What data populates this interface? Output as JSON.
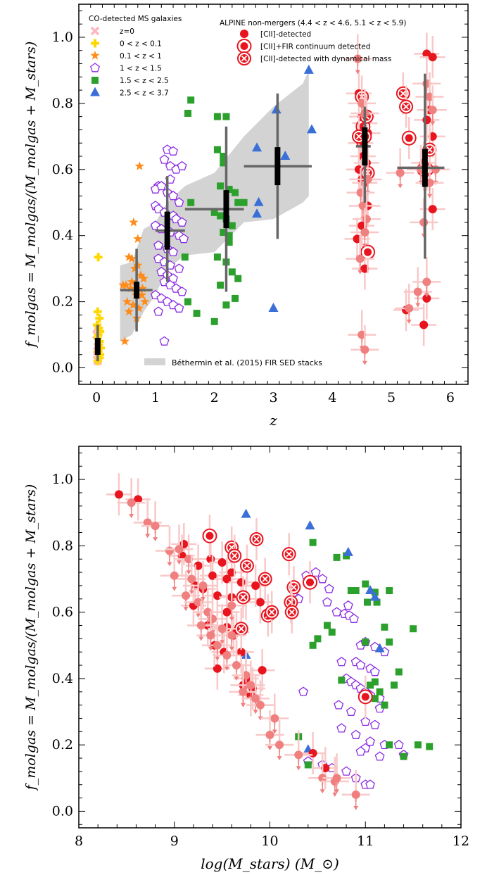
{
  "colors": {
    "z0": "#ffb6c1",
    "zlt01": "#ffd700",
    "z01_1": "#ff8c1a",
    "z1_15": "#8b2be2",
    "z15_25": "#2ca02c",
    "z25_37": "#3a6fd8",
    "alpine": "#e8141e",
    "alpine_ul": "#f08080",
    "errbar": "#f9c8c8",
    "band": "#d3d3d3",
    "binned_err": "#666666",
    "binned_mean": "#000000"
  },
  "legend": {
    "co_title": "CO-detected MS galaxies",
    "co_items": [
      {
        "label": "z=0",
        "marker": "x",
        "color": "#ffb6c1"
      },
      {
        "label": "0 < z < 0.1",
        "marker": "plus",
        "color": "#ffd700"
      },
      {
        "label": "0.1 < z < 1",
        "marker": "star",
        "color": "#ff8c1a"
      },
      {
        "label": "1 < z < 1.5",
        "marker": "pentagon",
        "color": "#8b2be2"
      },
      {
        "label": "1.5 < z < 2.5",
        "marker": "square",
        "color": "#2ca02c"
      },
      {
        "label": "2.5 < z < 3.7",
        "marker": "triangle",
        "color": "#3a6fd8"
      }
    ],
    "alpine_title": "ALPINE non-mergers (4.4 < z < 4.6, 5.1 < z < 5.9)",
    "alpine_items": [
      {
        "label": "[CII]-detected",
        "marker": "circle"
      },
      {
        "label": "[CII]+FIR continuum detected",
        "marker": "ring"
      },
      {
        "label": "[CII]-detected with dynamical mass",
        "marker": "xcircle"
      }
    ],
    "band_label": "Béthermin et al. (2015) FIR SED stacks"
  },
  "chart_data": [
    {
      "type": "scatter",
      "xlabel": "z",
      "ylabel": "f_molgas = M_molgas/(M_molgas + M_stars)",
      "xlim": [
        -0.3,
        6.3
      ],
      "ylim": [
        -0.05,
        1.1
      ],
      "xticks": [
        "0",
        "1",
        "2",
        "3",
        "4",
        "5",
        "6"
      ],
      "yticks": [
        "0.0",
        "0.2",
        "0.4",
        "0.6",
        "0.8",
        "1.0"
      ],
      "band": {
        "x": [
          0.4,
          0.6,
          0.8,
          1.0,
          1.2,
          1.5,
          2.0,
          2.5,
          3.0,
          3.5,
          3.6
        ],
        "lower": [
          0.08,
          0.1,
          0.17,
          0.22,
          0.3,
          0.34,
          0.35,
          0.44,
          0.45,
          0.5,
          0.52
        ],
        "upper": [
          0.31,
          0.32,
          0.42,
          0.44,
          0.5,
          0.55,
          0.59,
          0.7,
          0.79,
          0.86,
          0.9
        ]
      },
      "binned": [
        {
          "x": 0.02,
          "y": 0.065,
          "xlo": 0.0,
          "xhi": 0.05,
          "ylo": 0.02,
          "yhi": 0.13
        },
        {
          "x": 0.68,
          "y": 0.235,
          "xlo": 0.4,
          "xhi": 0.95,
          "ylo": 0.11,
          "yhi": 0.36
        },
        {
          "x": 1.2,
          "y": 0.415,
          "xlo": 1.0,
          "xhi": 1.5,
          "ylo": 0.26,
          "yhi": 0.58
        },
        {
          "x": 2.2,
          "y": 0.48,
          "xlo": 1.5,
          "xhi": 2.5,
          "ylo": 0.23,
          "yhi": 0.73
        },
        {
          "x": 3.07,
          "y": 0.61,
          "xlo": 2.5,
          "xhi": 3.65,
          "ylo": 0.39,
          "yhi": 0.83
        },
        {
          "x": 4.55,
          "y": 0.67,
          "xlo": 4.4,
          "xhi": 4.65,
          "ylo": 0.5,
          "yhi": 0.79
        },
        {
          "x": 5.57,
          "y": 0.605,
          "xlo": 5.1,
          "xhi": 5.9,
          "ylo": 0.33,
          "yhi": 0.89
        }
      ],
      "series": [
        {
          "name": "z=0",
          "marker": "x",
          "x": [
            0.01,
            0.02,
            0.01,
            0.03,
            0.02,
            0.0,
            0.01
          ],
          "y": [
            0.04,
            0.08,
            0.12,
            0.06,
            0.02,
            0.1,
            0.05
          ]
        },
        {
          "name": "0 < z < 0.1",
          "marker": "plus",
          "x": [
            0.03,
            0.02,
            0.05,
            0.01,
            0.04,
            0.06,
            0.03,
            0.02,
            0.05,
            0.04,
            0.07,
            0.03,
            0.06,
            0.05,
            0.02
          ],
          "y": [
            0.335,
            0.17,
            0.15,
            0.13,
            0.12,
            0.11,
            0.1,
            0.09,
            0.08,
            0.07,
            0.06,
            0.05,
            0.04,
            0.03,
            0.02
          ]
        },
        {
          "name": "0.1 < z < 1",
          "marker": "star",
          "x": [
            0.73,
            0.63,
            0.7,
            0.55,
            0.6,
            0.65,
            0.75,
            0.8,
            0.5,
            0.45,
            0.58,
            0.67,
            0.77,
            0.52,
            0.62,
            0.72,
            0.55,
            0.68,
            0.48,
            0.82,
            0.6,
            0.7,
            0.78
          ],
          "y": [
            0.61,
            0.44,
            0.39,
            0.335,
            0.33,
            0.3,
            0.28,
            0.27,
            0.25,
            0.25,
            0.24,
            0.22,
            0.22,
            0.2,
            0.19,
            0.18,
            0.17,
            0.15,
            0.08,
            0.2,
            0.26,
            0.31,
            0.24
          ]
        },
        {
          "name": "1 < z < 1.5",
          "marker": "pentagon",
          "x": [
            1.2,
            1.3,
            1.15,
            1.25,
            1.35,
            1.45,
            1.05,
            1.0,
            1.1,
            1.2,
            1.3,
            1.4,
            1.0,
            1.05,
            1.15,
            1.3,
            1.35,
            1.45,
            1.0,
            1.1,
            1.25,
            1.4,
            1.48,
            1.05,
            1.2,
            1.3,
            1.05,
            1.15,
            1.25,
            1.4,
            1.1,
            1.2,
            1.3,
            1.15,
            1.25,
            1.35,
            1.45,
            1.0,
            1.1,
            1.2,
            1.3,
            1.4,
            1.05,
            1.15,
            1.25
          ],
          "y": [
            0.66,
            0.655,
            0.63,
            0.61,
            0.6,
            0.61,
            0.55,
            0.54,
            0.55,
            0.53,
            0.52,
            0.5,
            0.49,
            0.48,
            0.47,
            0.46,
            0.45,
            0.44,
            0.43,
            0.42,
            0.41,
            0.4,
            0.39,
            0.37,
            0.36,
            0.35,
            0.33,
            0.32,
            0.31,
            0.3,
            0.29,
            0.28,
            0.27,
            0.26,
            0.25,
            0.24,
            0.23,
            0.22,
            0.21,
            0.2,
            0.19,
            0.18,
            0.17,
            0.08,
            0.57
          ]
        },
        {
          "name": "1.5 < z < 2.5",
          "marker": "square",
          "x": [
            1.6,
            1.55,
            2.05,
            2.2,
            2.05,
            2.15,
            1.6,
            2.1,
            2.25,
            2.35,
            2.4,
            2.5,
            2.0,
            2.1,
            2.2,
            2.3,
            2.15,
            2.25,
            1.5,
            2.2,
            2.3,
            2.4,
            2.1,
            1.55,
            1.7,
            2.0,
            2.2,
            2.35,
            2.05,
            2.25,
            2.15
          ],
          "y": [
            0.81,
            0.77,
            0.76,
            0.76,
            0.66,
            0.64,
            0.5,
            0.55,
            0.54,
            0.53,
            0.5,
            0.5,
            0.47,
            0.46,
            0.45,
            0.43,
            0.41,
            0.4,
            0.335,
            0.32,
            0.29,
            0.27,
            0.25,
            0.2,
            0.165,
            0.14,
            0.19,
            0.21,
            0.335,
            0.38,
            0.62
          ]
        },
        {
          "name": "2.5 < z < 3.7",
          "marker": "triangle",
          "x": [
            3.6,
            3.05,
            2.72,
            3.65,
            3.2,
            2.72,
            3.0,
            2.75
          ],
          "y": [
            0.9,
            0.78,
            0.665,
            0.72,
            0.64,
            0.465,
            0.18,
            0.5
          ]
        },
        {
          "name": "[CII]-detected",
          "marker": "circle",
          "x": [
            4.45,
            4.5,
            4.55,
            4.6,
            4.48,
            4.52,
            4.58,
            4.45,
            4.5,
            4.55,
            4.6,
            4.42,
            4.5,
            4.55,
            5.6,
            5.7,
            5.65,
            5.6,
            5.55,
            5.65,
            5.7,
            5.25,
            5.55,
            5.6,
            5.7
          ],
          "y": [
            0.83,
            0.76,
            0.74,
            0.71,
            0.68,
            0.64,
            0.62,
            0.6,
            0.57,
            0.56,
            0.49,
            0.39,
            0.43,
            0.3,
            0.95,
            0.94,
            0.78,
            0.75,
            0.62,
            0.6,
            0.48,
            0.175,
            0.13,
            0.21,
            0.7
          ]
        },
        {
          "name": "[CII]+FIR continuum detected",
          "marker": "ring",
          "x": [
            4.52,
            4.6,
            5.3
          ],
          "y": [
            0.73,
            0.35,
            0.695
          ]
        },
        {
          "name": "[CII]-detected with dynamical mass",
          "marker": "xcircle",
          "x": [
            4.5,
            4.58,
            4.55,
            4.6,
            4.45,
            5.2,
            5.65,
            5.6,
            5.55,
            5.25
          ],
          "y": [
            0.82,
            0.76,
            0.7,
            0.59,
            0.7,
            0.83,
            0.66,
            0.6,
            0.6,
            0.79
          ]
        },
        {
          "name": "ALPINE upper limits",
          "marker": "ul",
          "x": [
            4.43,
            4.5,
            4.55,
            4.6,
            4.48,
            4.52,
            4.58,
            4.55,
            4.47,
            4.5,
            4.55,
            5.15,
            5.3,
            5.45,
            5.5,
            5.6,
            5.65,
            5.7,
            5.75,
            5.65,
            5.6,
            5.55
          ],
          "y": [
            0.935,
            0.8,
            0.77,
            0.57,
            0.53,
            0.49,
            0.45,
            0.41,
            0.33,
            0.1,
            0.055,
            0.59,
            0.18,
            0.23,
            0.6,
            0.86,
            0.82,
            0.78,
            0.6,
            0.56,
            0.26,
            0.44
          ]
        }
      ]
    },
    {
      "type": "scatter",
      "xlabel": "log(M_stars) (M_⊙)",
      "ylabel": "f_molgas = M_molgas/(M_molgas + M_stars)",
      "xlim": [
        8.0,
        12.0
      ],
      "ylim": [
        -0.05,
        1.1
      ],
      "xticks": [
        "8",
        "9",
        "10",
        "11",
        "12"
      ],
      "yticks": [
        "0.0",
        "0.2",
        "0.4",
        "0.6",
        "0.8",
        "1.0"
      ],
      "series": [
        {
          "name": "1 < z < 1.5",
          "marker": "pentagon",
          "x": [
            10.38,
            10.48,
            10.55,
            10.62,
            10.6,
            10.7,
            10.78,
            10.83,
            10.88,
            10.95,
            11.0,
            11.1,
            11.2,
            10.9,
            10.95,
            11.05,
            11.1,
            10.8,
            10.85,
            10.9,
            10.95,
            11.0,
            11.05,
            11.15,
            10.72,
            10.85,
            11.0,
            11.1,
            10.75,
            10.9,
            11.05,
            11.0,
            10.95,
            11.15,
            11.2,
            10.4,
            10.55,
            10.65,
            10.8,
            10.9,
            11.0,
            11.05,
            11.15,
            11.35,
            11.4,
            10.35,
            10.25,
            10.3,
            10.75,
            10.82
          ],
          "y": [
            0.71,
            0.72,
            0.7,
            0.67,
            0.63,
            0.6,
            0.595,
            0.59,
            0.58,
            0.5,
            0.51,
            0.495,
            0.48,
            0.45,
            0.44,
            0.43,
            0.42,
            0.4,
            0.39,
            0.38,
            0.37,
            0.36,
            0.35,
            0.34,
            0.32,
            0.3,
            0.27,
            0.26,
            0.25,
            0.23,
            0.21,
            0.19,
            0.18,
            0.165,
            0.2,
            0.15,
            0.14,
            0.13,
            0.12,
            0.1,
            0.08,
            0.08,
            0.31,
            0.2,
            0.17,
            0.36,
            0.66,
            0.64,
            0.45,
            0.62
          ]
        },
        {
          "name": "1.5 < z < 2.5",
          "marker": "square",
          "x": [
            10.45,
            10.7,
            10.8,
            11.0,
            11.1,
            11.25,
            10.85,
            10.9,
            11.02,
            11.12,
            10.6,
            10.45,
            10.65,
            11.0,
            11.2,
            10.5,
            11.25,
            11.5,
            11.3,
            11.35,
            11.1,
            11.05,
            11.15,
            11.2,
            10.75,
            11.1,
            10.3,
            11.25,
            11.4,
            11.55,
            11.67,
            10.4
          ],
          "y": [
            0.81,
            0.765,
            0.77,
            0.685,
            0.66,
            0.665,
            0.665,
            0.665,
            0.63,
            0.63,
            0.56,
            0.5,
            0.54,
            0.51,
            0.555,
            0.52,
            0.51,
            0.55,
            0.38,
            0.42,
            0.39,
            0.38,
            0.36,
            0.32,
            0.395,
            0.34,
            0.225,
            0.2,
            0.165,
            0.2,
            0.195,
            0.14
          ]
        },
        {
          "name": "2.5 < z < 3.7",
          "marker": "triangle",
          "x": [
            9.75,
            10.42,
            10.82,
            11.05,
            11.1,
            11.15,
            9.75,
            10.4
          ],
          "y": [
            0.895,
            0.86,
            0.78,
            0.665,
            0.645,
            0.49,
            0.47,
            0.185
          ]
        },
        {
          "name": "[CII]-detected",
          "marker": "circle",
          "x": [
            8.42,
            8.62,
            9.1,
            9.08,
            9.25,
            9.38,
            9.5,
            9.4,
            9.55,
            9.7,
            9.22,
            9.3,
            9.45,
            9.6,
            9.75,
            9.9,
            9.2,
            9.35,
            9.55,
            9.62,
            9.45,
            9.7,
            9.75,
            9.8,
            9.92,
            9.82,
            9.72,
            9.65,
            9.52,
            9.42,
            9.6,
            9.85,
            9.55,
            10.45,
            10.58
          ],
          "y": [
            0.955,
            0.94,
            0.805,
            0.77,
            0.74,
            0.76,
            0.75,
            0.71,
            0.7,
            0.69,
            0.68,
            0.67,
            0.65,
            0.645,
            0.64,
            0.63,
            0.62,
            0.56,
            0.555,
            0.53,
            0.43,
            0.48,
            0.4,
            0.35,
            0.425,
            0.37,
            0.38,
            0.54,
            0.48,
            0.5,
            0.72,
            0.68,
            0.6,
            0.175,
            0.13
          ]
        },
        {
          "name": "[CII]+FIR continuum detected",
          "marker": "ring",
          "x": [
            9.37,
            10.42,
            11.0
          ],
          "y": [
            0.83,
            0.69,
            0.345
          ]
        },
        {
          "name": "[CII]-detected with dynamical mass",
          "marker": "xcircle",
          "x": [
            9.86,
            9.76,
            9.95,
            10.25,
            10.22,
            10.23,
            9.98,
            10.02,
            9.6,
            9.63,
            10.2,
            9.7,
            9.72
          ],
          "y": [
            0.82,
            0.74,
            0.7,
            0.675,
            0.63,
            0.6,
            0.59,
            0.6,
            0.795,
            0.77,
            0.775,
            0.55,
            0.645
          ]
        },
        {
          "name": "ALPINE upper limits",
          "marker": "ul",
          "x": [
            8.55,
            8.72,
            8.8,
            8.95,
            9.05,
            9.15,
            9.0,
            9.18,
            9.3,
            9.12,
            9.25,
            9.35,
            9.4,
            9.5,
            9.6,
            9.45,
            9.55,
            9.65,
            9.75,
            9.8,
            9.72,
            9.85,
            9.9,
            10.05,
            10.0,
            10.1,
            10.3,
            10.55,
            10.68,
            10.7,
            10.9,
            9.6,
            9.38,
            9.28
          ],
          "y": [
            0.93,
            0.87,
            0.86,
            0.785,
            0.79,
            0.76,
            0.71,
            0.7,
            0.68,
            0.65,
            0.63,
            0.6,
            0.58,
            0.55,
            0.53,
            0.5,
            0.47,
            0.44,
            0.41,
            0.38,
            0.36,
            0.34,
            0.32,
            0.28,
            0.23,
            0.2,
            0.17,
            0.1,
            0.09,
            0.1,
            0.05,
            0.62,
            0.53,
            0.56
          ]
        }
      ]
    }
  ]
}
